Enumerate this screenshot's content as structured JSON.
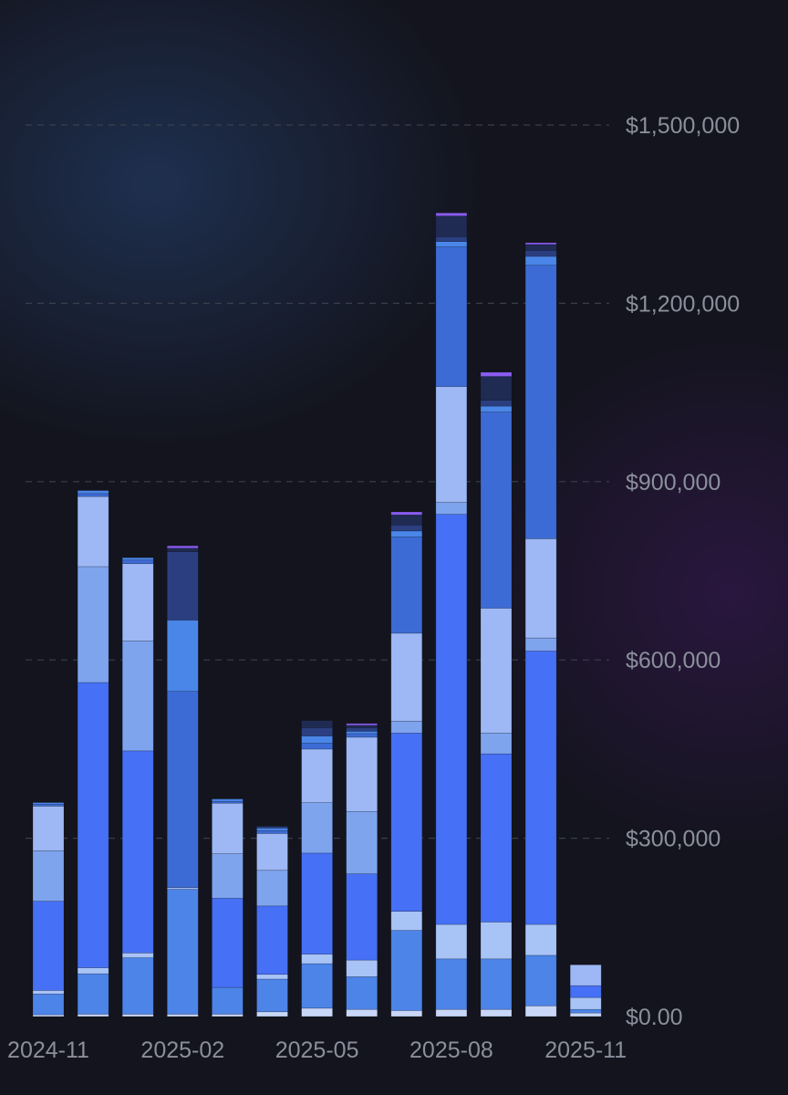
{
  "chart_data": {
    "type": "bar",
    "stacked": true,
    "categories": [
      "2024-11",
      "2024-12",
      "2025-01",
      "2025-02",
      "2025-03",
      "2025-04",
      "2025-05",
      "2025-06",
      "2025-07",
      "2025-08",
      "2025-09",
      "2025-10",
      "2025-11"
    ],
    "x_tick_labels": [
      {
        "index": 0,
        "label": "2024-11"
      },
      {
        "index": 3,
        "label": "2025-02"
      },
      {
        "index": 6,
        "label": "2025-05"
      },
      {
        "index": 9,
        "label": "2025-08"
      },
      {
        "index": 12,
        "label": "2025-11"
      }
    ],
    "y_tick_labels": [
      "$0.00",
      "$300,000",
      "$600,000",
      "$900,000",
      "$1,200,000",
      "$1,500,000"
    ],
    "y_ticks": [
      0,
      300000,
      600000,
      900000,
      1200000,
      1500000
    ],
    "ylim": [
      0,
      1500000
    ],
    "grid": true,
    "y_axis_position": "right",
    "legend": "none",
    "segment_colors": [
      "#c8d6f7",
      "#4c84e8",
      "#a8c4f7",
      "#4670f5",
      "#4c84e8",
      "#7ea4ee",
      "#9db8f4",
      "#3d6bd6",
      "#4a86e8",
      "#2b3f80",
      "#1f2b52",
      "#8a5cf0"
    ],
    "stacks": [
      [
        3000,
        35000,
        6000,
        150000,
        0,
        85000,
        75000,
        3000,
        3000,
        0,
        0,
        0
      ],
      [
        4000,
        68000,
        10000,
        480000,
        0,
        195000,
        118000,
        5000,
        5000,
        0,
        0,
        0
      ],
      [
        4000,
        95000,
        8000,
        340000,
        0,
        185000,
        130000,
        6000,
        4000,
        0,
        0,
        0
      ],
      [
        4000,
        0,
        0,
        0,
        210000,
        0,
        3000,
        330000,
        120000,
        115000,
        6000,
        4000
      ],
      [
        4000,
        45000,
        0,
        150000,
        0,
        75000,
        85000,
        3000,
        4000,
        0,
        0,
        0
      ],
      [
        8000,
        55000,
        8000,
        115000,
        0,
        60000,
        62000,
        5000,
        4000,
        3000,
        0,
        0
      ],
      [
        14000,
        75000,
        16000,
        170000,
        0,
        85000,
        90000,
        10000,
        12000,
        14000,
        12000,
        0
      ],
      [
        12000,
        55000,
        28000,
        145000,
        0,
        105000,
        125000,
        6000,
        4000,
        6000,
        4000,
        3000
      ],
      [
        10000,
        135000,
        32000,
        300000,
        0,
        20000,
        148000,
        162000,
        10000,
        10000,
        17000,
        5000
      ],
      [
        12000,
        85000,
        58000,
        690000,
        0,
        20000,
        195000,
        235000,
        9000,
        8000,
        35000,
        5000
      ],
      [
        12000,
        85000,
        62000,
        283000,
        0,
        35000,
        210000,
        330000,
        10000,
        10000,
        40000,
        7000
      ],
      [
        18000,
        85000,
        52000,
        460000,
        0,
        22000,
        167000,
        460000,
        15000,
        10000,
        10000,
        3000
      ]
    ],
    "partial_last": [
      6000,
      6000,
      20000,
      20000,
      0,
      0,
      35000,
      0,
      0,
      0,
      0,
      0
    ]
  }
}
